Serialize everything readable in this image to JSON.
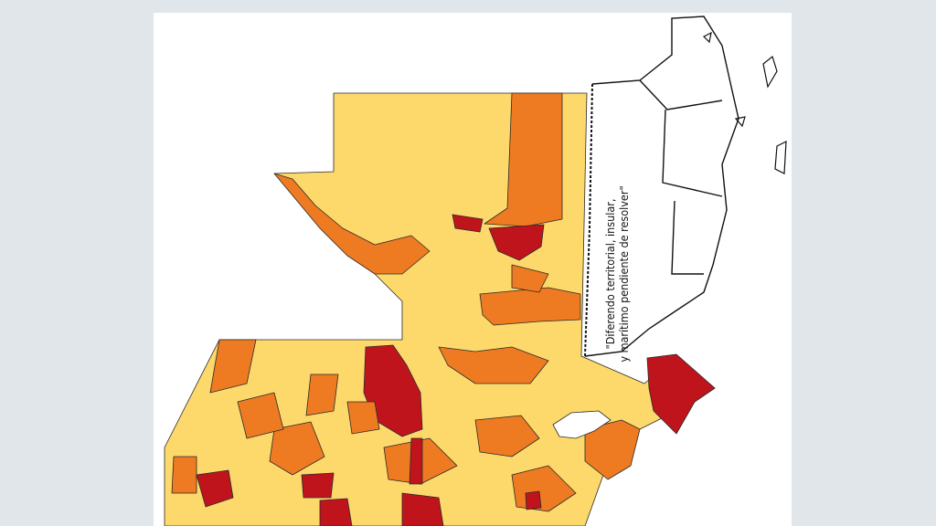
{
  "map": {
    "colors": {
      "low": "#fdd96b",
      "medium": "#ee7b22",
      "high": "#c0141d",
      "border": "#2a2a2a",
      "background": "#e1e6ea",
      "card": "#ffffff"
    },
    "annotation": {
      "line1": "\"Diferendo territorial, insular,",
      "line2": "y marítimo pendiente de resolver\""
    }
  }
}
